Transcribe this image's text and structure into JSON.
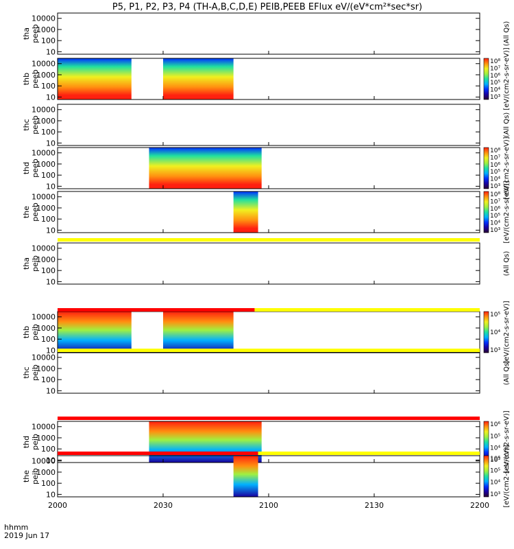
{
  "chart_data": {
    "type": "heatmap",
    "title": "P5, P1, P2, P3, P4 (TH-A,B,C,D,E) PEIB,PEEB EFlux eV/(eV*cm²*sec*sr)",
    "date_label": "2019 Jun 17",
    "time_format_label": "hhmm",
    "x_range": [
      "2000",
      "2200"
    ],
    "x_ticks": [
      "2000",
      "2030",
      "2100",
      "2130",
      "2200"
    ],
    "y_ticks": [
      "10",
      "100",
      "1000",
      "10000"
    ],
    "colorscale": [
      "#2a0030",
      "#1a00a0",
      "#0030ff",
      "#00b0ff",
      "#20e0a0",
      "#a0f040",
      "#f0f020",
      "#ff9010",
      "#ff2010"
    ],
    "panels": [
      {
        "probe": "tha",
        "instrument": "peeb",
        "label": "tha\npeeb",
        "side_label": "(All Qs)",
        "intervals": []
      },
      {
        "probe": "thb",
        "instrument": "peeb",
        "label": "thb\npeeb",
        "side_label": "[eV/(cm2-s-sr-eV)]",
        "colorbar_ticks": [
          "10³",
          "10⁴",
          "10⁵",
          "10⁶",
          "10⁷",
          "10⁸"
        ],
        "intervals": [
          {
            "start": "2000",
            "end": "2021"
          },
          {
            "start": "2030",
            "end": "2050"
          }
        ]
      },
      {
        "probe": "thc",
        "instrument": "peeb",
        "label": "thc\npeeb",
        "side_label": "(All Qs)",
        "intervals": []
      },
      {
        "probe": "thd",
        "instrument": "peeb",
        "label": "thd\npeeb",
        "side_label": "[eV/(cm2-s-sr-eV)]",
        "colorbar_ticks": [
          "10³",
          "10⁴",
          "10⁵",
          "10⁶",
          "10⁷",
          "10⁸"
        ],
        "intervals": [
          {
            "start": "2026",
            "end": "2058"
          }
        ]
      },
      {
        "probe": "the",
        "instrument": "peeb",
        "label": "the\npeeb",
        "side_label": "[eV/(cm2-s-sr-eV)]",
        "colorbar_ticks": [
          "10³",
          "10⁴",
          "10⁵",
          "10⁶",
          "10⁷",
          "10⁸"
        ],
        "intervals": [
          {
            "start": "2050",
            "end": "2057"
          }
        ]
      },
      {
        "probe": "tha",
        "instrument": "peib",
        "label": "tha\npeib",
        "side_label": "(All Qs)",
        "intervals": []
      },
      {
        "probe": "thb",
        "instrument": "peib",
        "label": "thb\npeib",
        "side_label": "[eV/(cm2-s-sr-eV)]",
        "colorbar_ticks": [
          "10³",
          "10⁴",
          "10⁵"
        ],
        "intervals": [
          {
            "start": "2000",
            "end": "2021"
          },
          {
            "start": "2030",
            "end": "2050"
          }
        ]
      },
      {
        "probe": "thc",
        "instrument": "peib",
        "label": "thc\npeib",
        "side_label": "(All Qs)",
        "intervals": []
      },
      {
        "probe": "thd",
        "instrument": "peib",
        "label": "thd\npeib",
        "side_label": "[eV/(cm2-s-sr-eV)]",
        "colorbar_ticks": [
          "10³",
          "10⁴",
          "10⁵",
          "10⁶"
        ],
        "intervals": [
          {
            "start": "2026",
            "end": "2058"
          }
        ]
      },
      {
        "probe": "the",
        "instrument": "peib",
        "label": "the\npeib",
        "side_label": "[eV/(cm2-s-sr-eV)]",
        "colorbar_ticks": [
          "10³",
          "10⁴",
          "10⁵",
          "10⁶"
        ],
        "intervals": [
          {
            "start": "2050",
            "end": "2057"
          }
        ]
      }
    ],
    "mode_bars": [
      {
        "after_panel": 4,
        "segments": [
          {
            "start": "2000",
            "end": "2200",
            "color": "#ffff00"
          }
        ]
      },
      {
        "after_panel": 5,
        "segments": [
          {
            "start": "2000",
            "end": "2056",
            "color": "#ff0000"
          },
          {
            "start": "2056",
            "end": "2200",
            "color": "#ffff00"
          }
        ]
      },
      {
        "after_panel": 6,
        "segments": [
          {
            "start": "2000",
            "end": "2200",
            "color": "#ffff00"
          }
        ]
      },
      {
        "after_panel": 7,
        "segments": [
          {
            "start": "2000",
            "end": "2200",
            "color": "#ff0000"
          }
        ]
      },
      {
        "after_panel": 8,
        "segments": [
          {
            "start": "2000",
            "end": "2057",
            "color": "#ff0000"
          },
          {
            "start": "2057",
            "end": "2200",
            "color": "#ffff00"
          }
        ]
      }
    ]
  }
}
